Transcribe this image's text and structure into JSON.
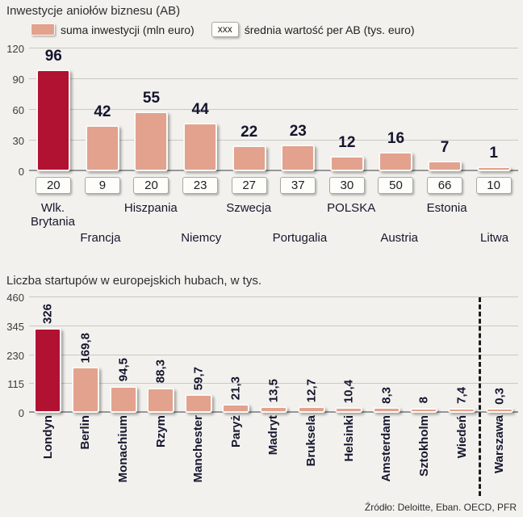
{
  "chart_data": [
    {
      "type": "bar",
      "title": "Inwestycje aniołów biznesu (AB)",
      "legend": [
        {
          "label": "suma inwestycji (mln euro)"
        },
        {
          "box_text": "xxx",
          "label": "średnia wartość per AB (tys. euro)"
        }
      ],
      "ylim": [
        0,
        120
      ],
      "yticks": [
        0,
        30,
        60,
        90,
        120
      ],
      "categories": [
        "Wlk.\nBrytania",
        "Francja",
        "Hiszpania",
        "Niemcy",
        "Szwecja",
        "Portugalia",
        "POLSKA",
        "Austria",
        "Estonia",
        "Litwa"
      ],
      "values": [
        96,
        42,
        55,
        44,
        22,
        23,
        12,
        16,
        7,
        1
      ],
      "value_labels": [
        "96",
        "42",
        "55",
        "44",
        "22",
        "23",
        "12",
        "16",
        "7",
        "1"
      ],
      "avg_per_ab": [
        "20",
        "9",
        "20",
        "23",
        "27",
        "37",
        "30",
        "50",
        "66",
        "10"
      ],
      "highlight_index": 0,
      "grid": true,
      "legend_position": "top"
    },
    {
      "type": "bar",
      "title": "Liczba startupów w europejskich hubach, w tys.",
      "ylim": [
        0,
        460
      ],
      "yticks": [
        0,
        115,
        230,
        345,
        460
      ],
      "categories": [
        "Londyn",
        "Berlin",
        "Monachium",
        "Rzym",
        "Manchester",
        "Paryż",
        "Madryt",
        "Bruksela",
        "Helsinki",
        "Amsterdam",
        "Sztokholm",
        "Wiedeń",
        "Warszawa"
      ],
      "values": [
        326,
        169.8,
        94.5,
        88.3,
        59.7,
        21.3,
        13.5,
        12.7,
        10.4,
        8.3,
        8,
        7.4,
        0.3
      ],
      "value_labels": [
        "326",
        "169,8",
        "94,5",
        "88,3",
        "59,7",
        "21,3",
        "13,5",
        "12,7",
        "10,4",
        "8,3",
        "8",
        "7,4",
        "0,3"
      ],
      "highlight_index": 0,
      "dashed_before_index": 12,
      "grid": true
    }
  ],
  "source": "Źródło: Deloitte, Eban. OECD, PFR",
  "colors": {
    "bar": "#e2a28e",
    "highlight": "#b11232",
    "value_text": "#14142e"
  }
}
